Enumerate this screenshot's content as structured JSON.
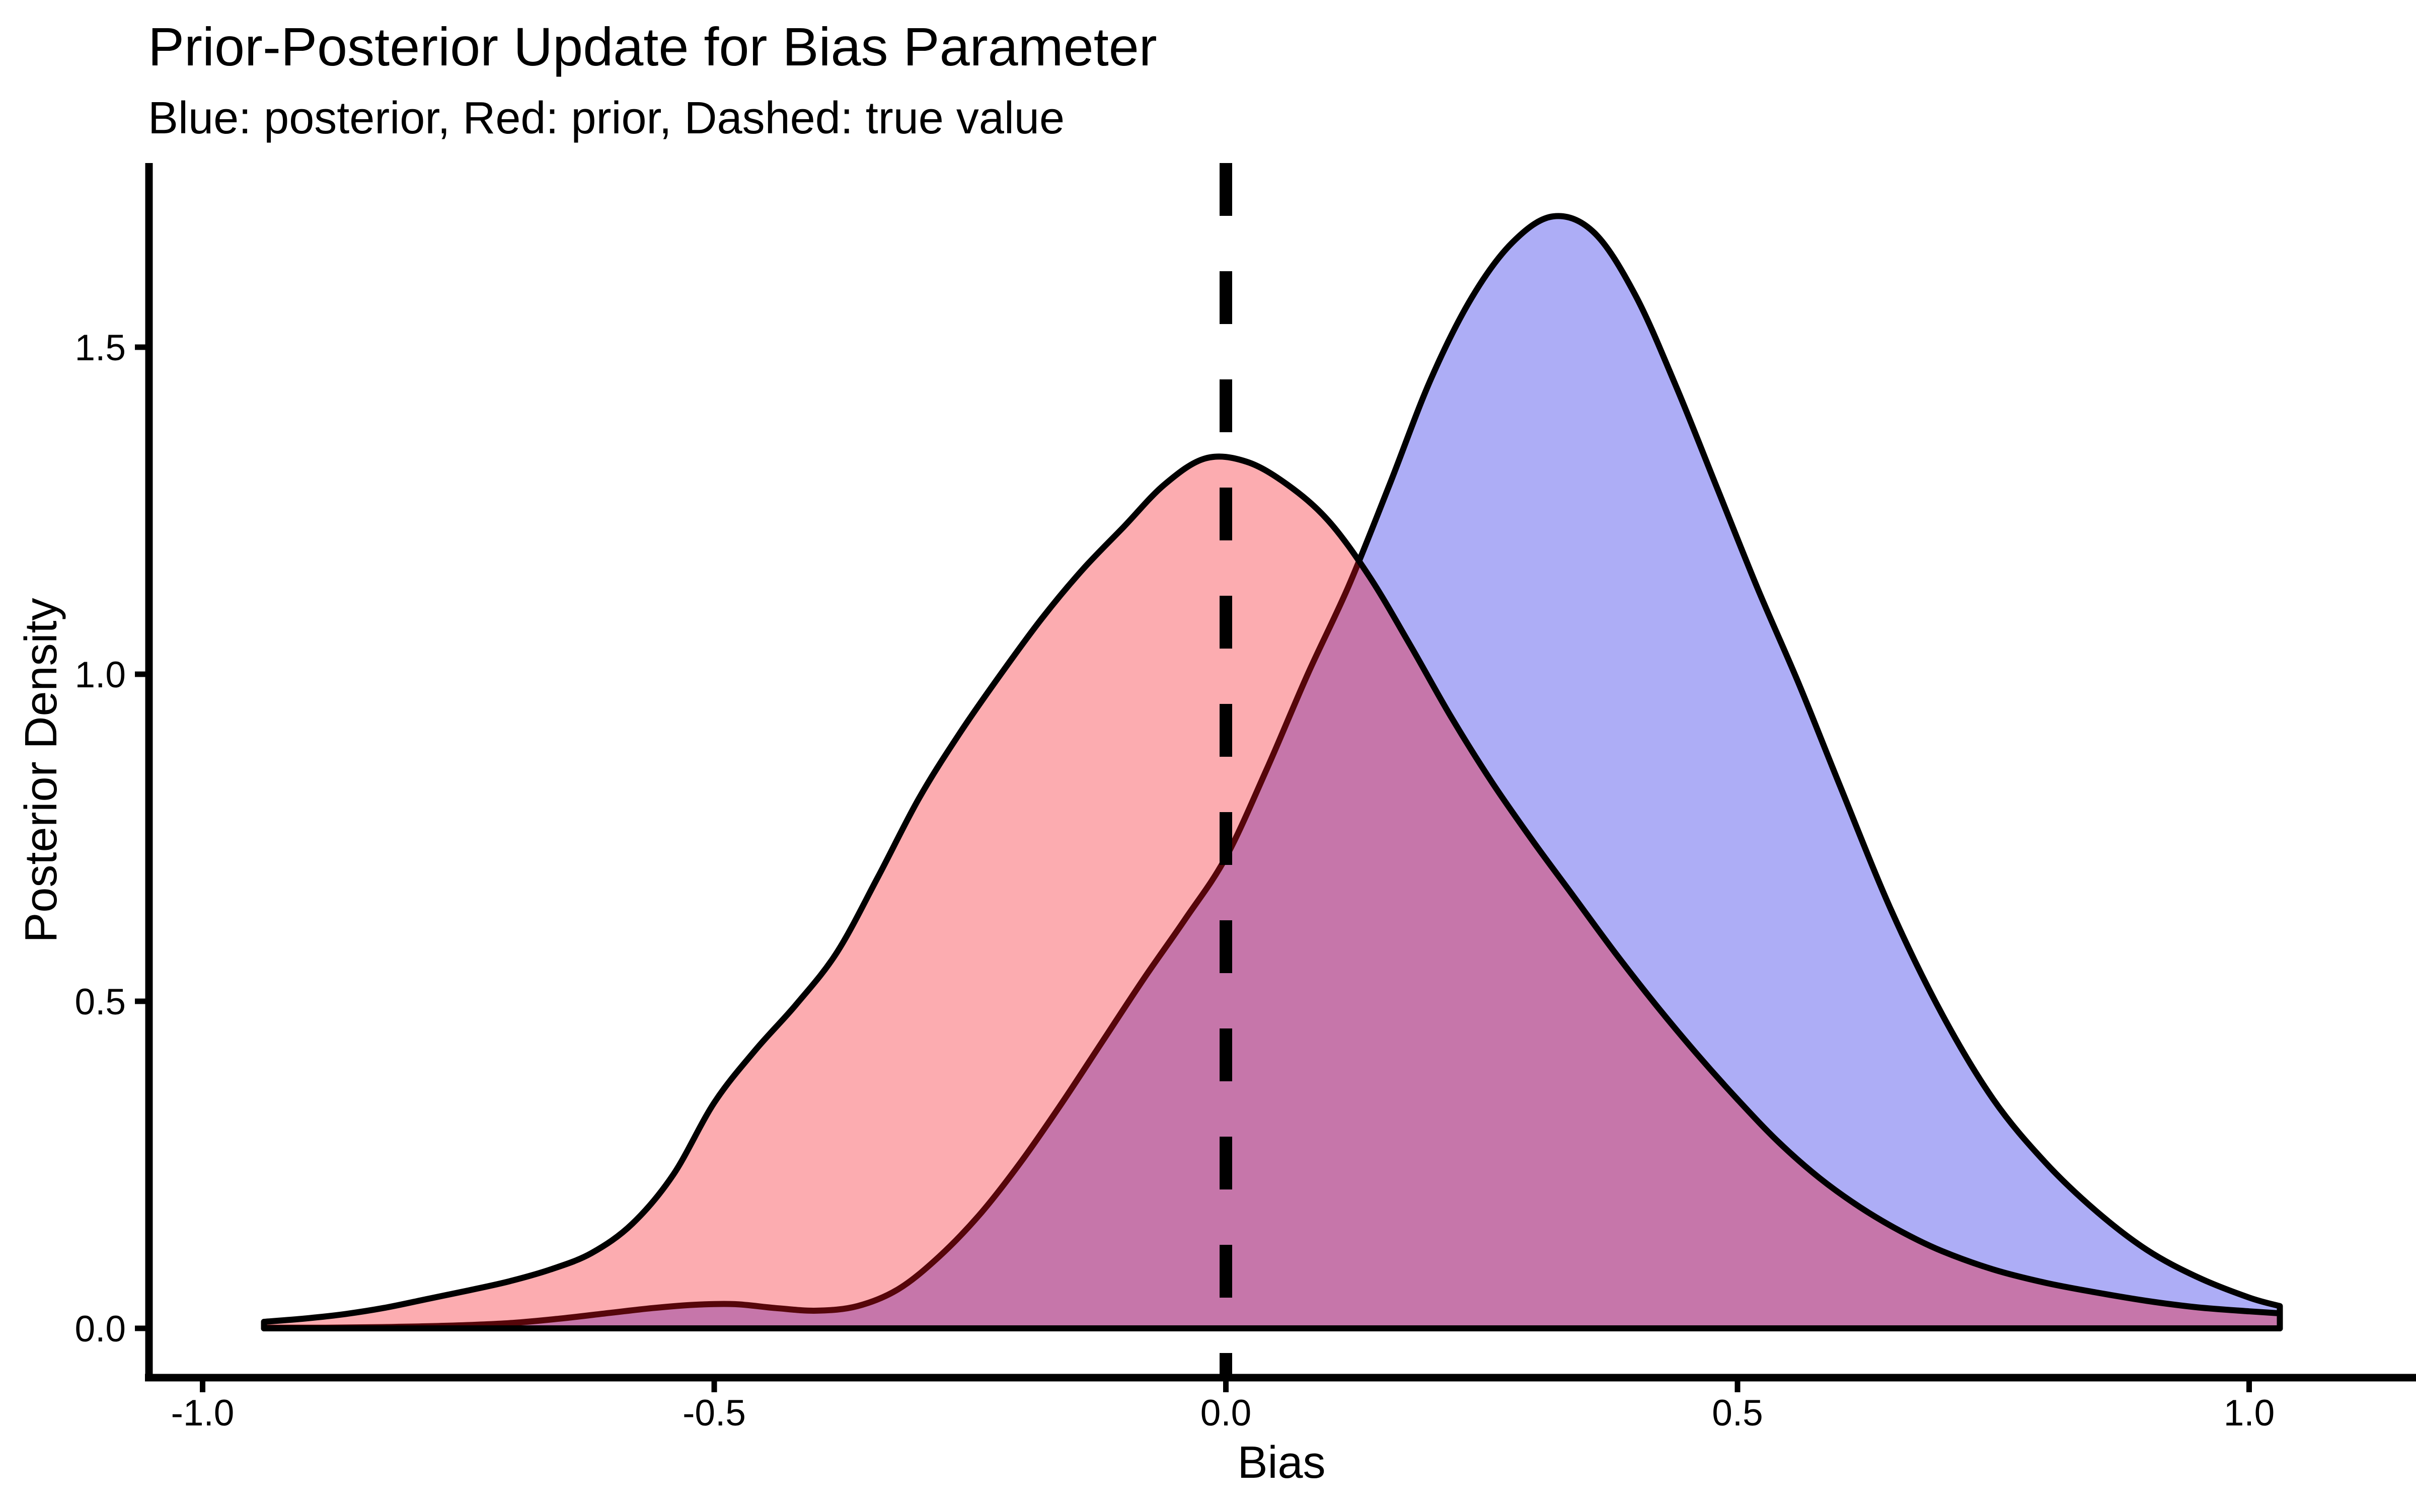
{
  "title": "Prior-Posterior Update for Bias Parameter",
  "subtitle": "Blue: posterior, Red: prior, Dashed: true value",
  "chart_data": {
    "type": "area",
    "title": "Prior-Posterior Update for Bias Parameter",
    "subtitle": "Blue: posterior, Red: prior, Dashed: true value",
    "xlabel": "Bias",
    "ylabel": "Posterior Density",
    "grid": "off",
    "legend": "none",
    "xlim": [
      -1.0524,
      1.1616
    ],
    "ylim": [
      -0.0754,
      1.7815
    ],
    "x_ticks": [
      -1.0,
      -0.5,
      0.0,
      0.5,
      1.0
    ],
    "x_tick_labels": [
      "-1.0",
      "-0.5",
      "0.0",
      "0.5",
      "1.0"
    ],
    "y_ticks": [
      0.0,
      0.5,
      1.0,
      1.5
    ],
    "y_tick_labels": [
      "0.0",
      "0.5",
      "1.0",
      "1.5"
    ],
    "true_value": 0.0,
    "annotations": {
      "vline": {
        "x": 0.0,
        "style": "dashed",
        "color": "#000000",
        "meaning": "true value"
      }
    },
    "colors": {
      "posterior_fill": "#ADADF6",
      "prior_fill": "rgba(247,18,28,0.35)",
      "overlap_appearance": "#C980B5",
      "curve_outline": "#000000",
      "background": "#FFFFFF"
    },
    "series": [
      {
        "name": "posterior",
        "fill": "#ADADF6",
        "outline": "#000000",
        "peak": {
          "x": 0.32,
          "y": 1.7
        },
        "x": [
          -0.94,
          -0.88,
          -0.82,
          -0.76,
          -0.7,
          -0.65,
          -0.6,
          -0.56,
          -0.52,
          -0.48,
          -0.44,
          -0.4,
          -0.36,
          -0.32,
          -0.28,
          -0.24,
          -0.2,
          -0.16,
          -0.12,
          -0.08,
          -0.04,
          0.0,
          0.04,
          0.08,
          0.12,
          0.16,
          0.2,
          0.24,
          0.28,
          0.32,
          0.36,
          0.4,
          0.44,
          0.48,
          0.52,
          0.56,
          0.6,
          0.65,
          0.7,
          0.75,
          0.8,
          0.85,
          0.9,
          0.95,
          1.0,
          1.03
        ],
        "y": [
          0.001,
          0.001,
          0.002,
          0.004,
          0.008,
          0.015,
          0.024,
          0.031,
          0.036,
          0.037,
          0.031,
          0.027,
          0.034,
          0.06,
          0.11,
          0.175,
          0.255,
          0.345,
          0.44,
          0.535,
          0.625,
          0.72,
          0.855,
          1.0,
          1.135,
          1.29,
          1.45,
          1.575,
          1.66,
          1.7,
          1.675,
          1.58,
          1.44,
          1.285,
          1.13,
          0.985,
          0.83,
          0.64,
          0.48,
          0.35,
          0.255,
          0.18,
          0.12,
          0.078,
          0.047,
          0.034
        ]
      },
      {
        "name": "prior",
        "fill": "rgba(247,18,28,0.35)",
        "outline": "#000000",
        "peak": {
          "x": -0.01,
          "y": 1.33
        },
        "x": [
          -0.94,
          -0.9,
          -0.86,
          -0.82,
          -0.78,
          -0.74,
          -0.7,
          -0.66,
          -0.62,
          -0.58,
          -0.54,
          -0.5,
          -0.46,
          -0.42,
          -0.38,
          -0.34,
          -0.3,
          -0.26,
          -0.22,
          -0.18,
          -0.14,
          -0.1,
          -0.06,
          -0.02,
          0.02,
          0.06,
          0.1,
          0.14,
          0.18,
          0.22,
          0.26,
          0.3,
          0.34,
          0.38,
          0.42,
          0.46,
          0.5,
          0.54,
          0.58,
          0.62,
          0.66,
          0.7,
          0.75,
          0.8,
          0.85,
          0.9,
          0.95,
          1.0,
          1.03
        ],
        "y": [
          0.01,
          0.015,
          0.022,
          0.032,
          0.045,
          0.058,
          0.072,
          0.09,
          0.115,
          0.16,
          0.235,
          0.345,
          0.425,
          0.495,
          0.575,
          0.69,
          0.81,
          0.91,
          1.0,
          1.085,
          1.16,
          1.225,
          1.29,
          1.33,
          1.325,
          1.29,
          1.235,
          1.15,
          1.045,
          0.935,
          0.835,
          0.745,
          0.66,
          0.575,
          0.495,
          0.42,
          0.35,
          0.285,
          0.23,
          0.185,
          0.148,
          0.118,
          0.09,
          0.07,
          0.055,
          0.042,
          0.032,
          0.026,
          0.023
        ]
      }
    ]
  }
}
